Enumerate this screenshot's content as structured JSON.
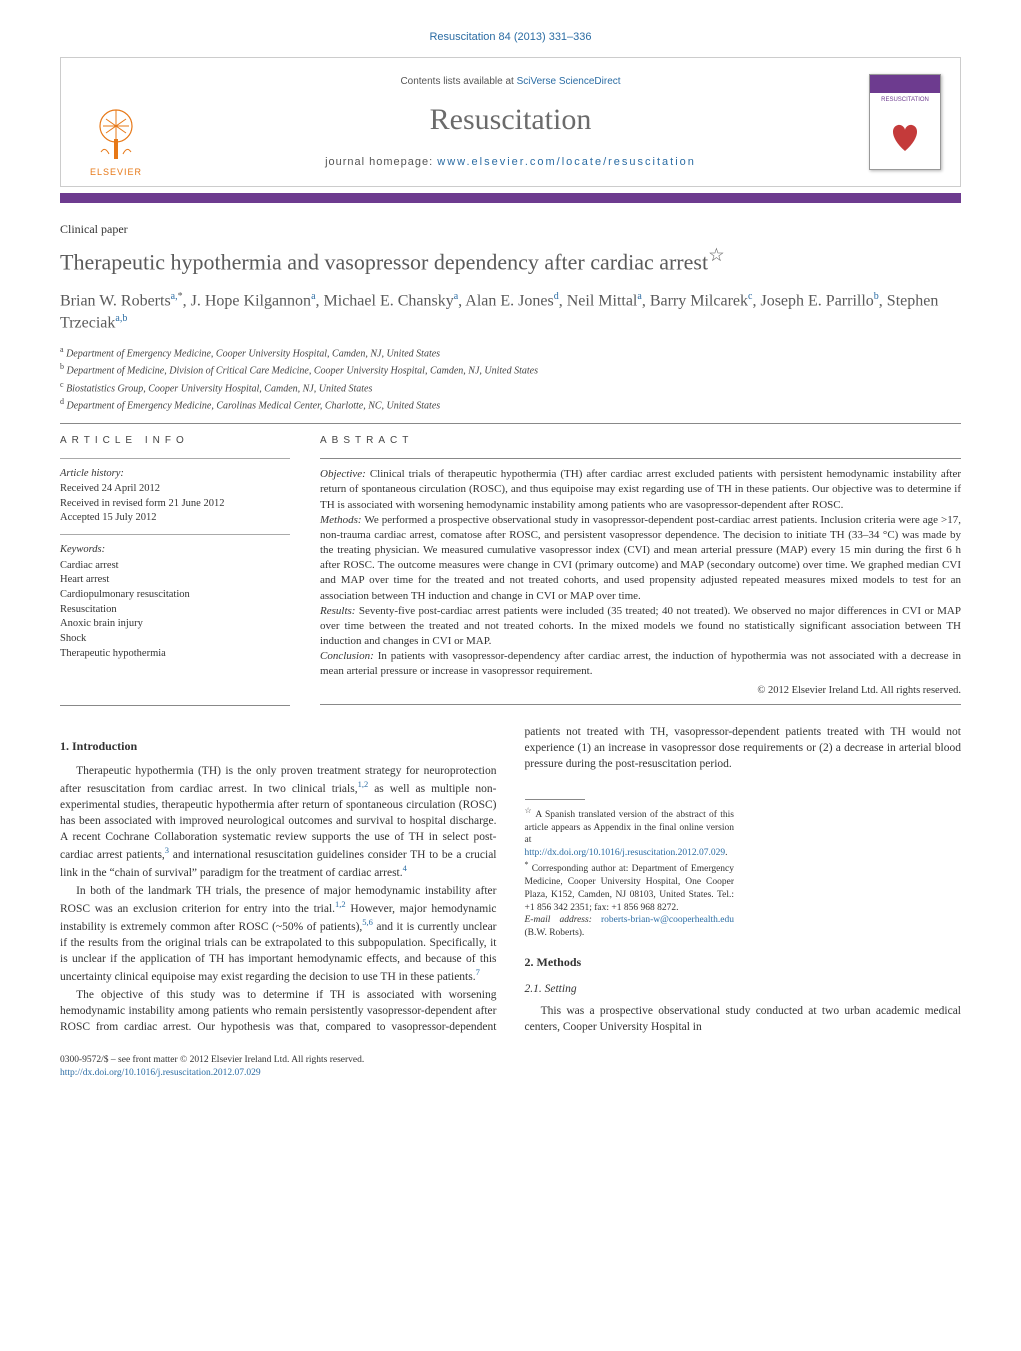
{
  "colors": {
    "link": "#2b6ca3",
    "accent_purple": "#6d3b8f",
    "elsevier_orange": "#e77817",
    "text_gray": "#5a5a5a",
    "rule": "#888888"
  },
  "running_head": "Resuscitation 84 (2013) 331–336",
  "masthead": {
    "contents_prefix": "Contents lists available at ",
    "contents_link_text": "SciVerse ScienceDirect",
    "journal_title": "Resuscitation",
    "homepage_prefix": "journal homepage: ",
    "homepage_link_text": "www.elsevier.com/locate/resuscitation",
    "publisher_wordmark": "ELSEVIER",
    "cover_word": "RESUSCITATION"
  },
  "paper_type": "Clinical paper",
  "title": "Therapeutic hypothermia and vasopressor dependency after cardiac arrest",
  "title_note_marker": "☆",
  "authors_html": "Brian W. Roberts<sup>a,</sup><sup class=\"star\">*</sup>, J. Hope Kilgannon<sup>a</sup>, Michael E. Chansky<sup>a</sup>, Alan E. Jones<sup>d</sup>, Neil Mittal<sup>a</sup>, Barry Milcarek<sup>c</sup>, Joseph E. Parrillo<sup>b</sup>, Stephen Trzeciak<sup>a,b</sup>",
  "affiliations": [
    {
      "key": "a",
      "text": "Department of Emergency Medicine, Cooper University Hospital, Camden, NJ, United States"
    },
    {
      "key": "b",
      "text": "Department of Medicine, Division of Critical Care Medicine, Cooper University Hospital, Camden, NJ, United States"
    },
    {
      "key": "c",
      "text": "Biostatistics Group, Cooper University Hospital, Camden, NJ, United States"
    },
    {
      "key": "d",
      "text": "Department of Emergency Medicine, Carolinas Medical Center, Charlotte, NC, United States"
    }
  ],
  "article_info": {
    "head": "ARTICLE INFO",
    "history_label": "Article history:",
    "history": [
      "Received 24 April 2012",
      "Received in revised form 21 June 2012",
      "Accepted 15 July 2012"
    ],
    "keywords_label": "Keywords:",
    "keywords": [
      "Cardiac arrest",
      "Heart arrest",
      "Cardiopulmonary resuscitation",
      "Resuscitation",
      "Anoxic brain injury",
      "Shock",
      "Therapeutic hypothermia"
    ]
  },
  "abstract": {
    "head": "ABSTRACT",
    "sections": [
      {
        "label": "Objective:",
        "text": "Clinical trials of therapeutic hypothermia (TH) after cardiac arrest excluded patients with persistent hemodynamic instability after return of spontaneous circulation (ROSC), and thus equipoise may exist regarding use of TH in these patients. Our objective was to determine if TH is associated with worsening hemodynamic instability among patients who are vasopressor-dependent after ROSC."
      },
      {
        "label": "Methods:",
        "text": "We performed a prospective observational study in vasopressor-dependent post-cardiac arrest patients. Inclusion criteria were age >17, non-trauma cardiac arrest, comatose after ROSC, and persistent vasopressor dependence. The decision to initiate TH (33–34 °C) was made by the treating physician. We measured cumulative vasopressor index (CVI) and mean arterial pressure (MAP) every 15 min during the first 6 h after ROSC. The outcome measures were change in CVI (primary outcome) and MAP (secondary outcome) over time. We graphed median CVI and MAP over time for the treated and not treated cohorts, and used propensity adjusted repeated measures mixed models to test for an association between TH induction and change in CVI or MAP over time."
      },
      {
        "label": "Results:",
        "text": "Seventy-five post-cardiac arrest patients were included (35 treated; 40 not treated). We observed no major differences in CVI or MAP over time between the treated and not treated cohorts. In the mixed models we found no statistically significant association between TH induction and changes in CVI or MAP."
      },
      {
        "label": "Conclusion:",
        "text": "In patients with vasopressor-dependency after cardiac arrest, the induction of hypothermia was not associated with a decrease in mean arterial pressure or increase in vasopressor requirement."
      }
    ],
    "copyright": "© 2012 Elsevier Ireland Ltd. All rights reserved."
  },
  "body": {
    "intro_head": "1.  Introduction",
    "intro_paragraphs": [
      "Therapeutic hypothermia (TH) is the only proven treatment strategy for neuroprotection after resuscitation from cardiac arrest. In two clinical trials,<sup class=\"ref\">1,2</sup> as well as multiple non-experimental studies, therapeutic hypothermia after return of spontaneous circulation (ROSC) has been associated with improved neurological outcomes and survival to hospital discharge. A recent Cochrane Collaboration systematic review supports the use of TH in select post-cardiac arrest patients,<sup class=\"ref\">3</sup> and international resuscitation guidelines consider TH to be a crucial link in the “chain of survival” paradigm for the treatment of cardiac arrest.<sup class=\"ref\">4</sup>",
      "In both of the landmark TH trials, the presence of major hemodynamic instability after ROSC was an exclusion criterion for entry into the trial.<sup class=\"ref\">1,2</sup> However, major hemodynamic instability is extremely common after ROSC (~50% of patients),<sup class=\"ref\">5,6</sup> and it is currently unclear if the results from the original trials can be extrapolated to this subpopulation. Specifically, it is unclear if the application of TH has important hemodynamic effects, and because of this uncertainty clinical equipoise may exist regarding the decision to use TH in these patients.<sup class=\"ref\">7</sup>",
      "The objective of this study was to determine if TH is associated with worsening hemodynamic instability among patients who remain persistently vasopressor-dependent after ROSC from cardiac arrest. Our hypothesis was that, compared to vasopressor-dependent patients not treated with TH, vasopressor-dependent patients treated with TH would not experience (1) an increase in vasopressor dose requirements or (2) a decrease in arterial blood pressure during the post-resuscitation period."
    ],
    "methods_head": "2.  Methods",
    "setting_head": "2.1.  Setting",
    "setting_paragraphs": [
      "This was a prospective observational study conducted at two urban academic medical centers, Cooper University Hospital in"
    ]
  },
  "footnotes": {
    "title_note_marker": "☆",
    "title_note_text": "A Spanish translated version of the abstract of this article appears as Appendix in the final online version at ",
    "title_note_link": "http://dx.doi.org/10.1016/j.resuscitation.2012.07.029",
    "corr_marker": "*",
    "corr_text": "Corresponding author at: Department of Emergency Medicine, Cooper University Hospital, One Cooper Plaza, K152, Camden, NJ 08103, United States. Tel.: +1 856 342 2351; fax: +1 856 968 8272.",
    "email_label": "E-mail address:",
    "email_value": "roberts-brian-w@cooperhealth.edu",
    "email_attribution": "(B.W. Roberts)."
  },
  "footer": {
    "line1": "0300-9572/$ – see front matter © 2012 Elsevier Ireland Ltd. All rights reserved.",
    "doi": "http://dx.doi.org/10.1016/j.resuscitation.2012.07.029"
  }
}
